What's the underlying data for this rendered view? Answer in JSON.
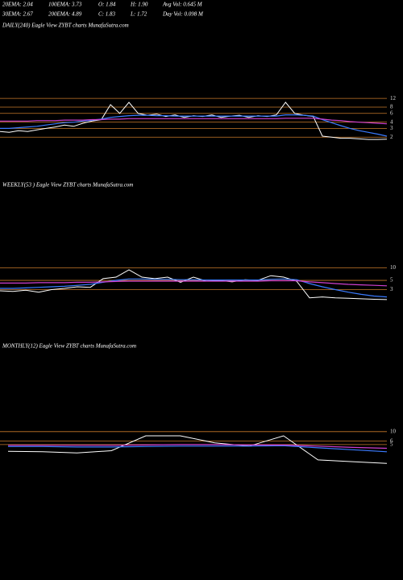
{
  "header": [
    [
      "20EMA: 2.04",
      "100EMA: 3.73",
      "O: 1.84",
      "H: 1.90",
      "Avg Vol: 0.645 M"
    ],
    [
      "30EMA: 2.67",
      "200EMA: 4.89",
      "C: 1.83",
      "L: 1.72",
      "Day Vol: 0.098 M"
    ]
  ],
  "chart_data": [
    {
      "type": "line",
      "title": "DAILY(240) Eagle  View  ZYBT charts MunafaSutra.com",
      "log_scale": true,
      "ylim": [
        1.5,
        14
      ],
      "yticks": [
        12,
        8,
        6,
        4,
        3,
        2
      ],
      "grid": true,
      "grid_color": "#c87a2a",
      "series": [
        {
          "color": "#ffffff",
          "values": [
            2.6,
            2.5,
            2.7,
            2.6,
            2.8,
            3.0,
            3.2,
            3.5,
            3.3,
            3.8,
            4.2,
            4.5,
            9,
            6,
            10,
            6,
            5.5,
            5.8,
            5.2,
            5.6,
            5.0,
            5.4,
            5.2,
            5.6,
            5.0,
            5.3,
            5.5,
            5.0,
            5.4,
            5.2,
            5.6,
            10,
            6,
            5.5,
            5.2,
            2.1,
            2.0,
            1.9,
            1.9,
            1.85,
            1.8,
            1.8,
            1.83
          ]
        },
        {
          "color": "#3a7bff",
          "values": [
            3,
            3,
            3.1,
            3.2,
            3.3,
            3.5,
            3.7,
            3.9,
            4,
            4.2,
            4.4,
            4.6,
            5,
            5.2,
            5.4,
            5.5,
            5.5,
            5.4,
            5.4,
            5.3,
            5.3,
            5.3,
            5.3,
            5.3,
            5.3,
            5.3,
            5.3,
            5.3,
            5.3,
            5.3,
            5.3,
            5.6,
            5.6,
            5.5,
            5.3,
            4.5,
            3.9,
            3.4,
            3.0,
            2.7,
            2.5,
            2.3,
            2.1
          ]
        },
        {
          "color": "#d040d0",
          "values": [
            4.2,
            4.2,
            4.2,
            4.2,
            4.3,
            4.3,
            4.3,
            4.4,
            4.4,
            4.4,
            4.5,
            4.5,
            4.6,
            4.6,
            4.7,
            4.7,
            4.7,
            4.7,
            4.7,
            4.7,
            4.7,
            4.7,
            4.7,
            4.7,
            4.7,
            4.7,
            4.7,
            4.7,
            4.7,
            4.7,
            4.7,
            4.8,
            4.8,
            4.8,
            4.8,
            4.6,
            4.4,
            4.3,
            4.1,
            4.0,
            3.9,
            3.8,
            3.7
          ]
        }
      ]
    },
    {
      "type": "line",
      "title": "WEEKLY(53                  ) Eagle  View  ZYBT charts MunafaSutra.com",
      "log_scale": true,
      "ylim": [
        1.5,
        14
      ],
      "yticks": [
        10,
        5,
        3
      ],
      "grid": true,
      "grid_color": "#c87a2a",
      "series": [
        {
          "color": "#ffffff",
          "values": [
            2.8,
            2.7,
            2.9,
            2.6,
            3.0,
            3.2,
            3.5,
            3.4,
            5.5,
            6,
            9,
            6,
            5.5,
            6,
            4.5,
            6,
            4.8,
            5,
            4.6,
            5.2,
            5,
            6.5,
            6,
            4.8,
            1.9,
            2.0,
            1.9,
            1.85,
            1.8,
            1.75,
            1.72
          ]
        },
        {
          "color": "#3a7bff",
          "values": [
            3.2,
            3.2,
            3.3,
            3.4,
            3.5,
            3.6,
            3.8,
            4.0,
            4.5,
            5.0,
            5.4,
            5.4,
            5.3,
            5.3,
            5.2,
            5.2,
            5.1,
            5.1,
            5.1,
            5.1,
            5.1,
            5.3,
            5.4,
            5.2,
            4.2,
            3.5,
            3.0,
            2.6,
            2.3,
            2.1,
            2.0
          ]
        },
        {
          "color": "#d040d0",
          "values": [
            4.3,
            4.3,
            4.3,
            4.4,
            4.4,
            4.4,
            4.5,
            4.5,
            4.6,
            4.7,
            4.8,
            4.8,
            4.8,
            4.8,
            4.8,
            4.8,
            4.8,
            4.8,
            4.8,
            4.8,
            4.8,
            4.9,
            4.9,
            4.9,
            4.6,
            4.4,
            4.2,
            4.0,
            3.9,
            3.8,
            3.7
          ]
        }
      ]
    },
    {
      "type": "line",
      "title": "MONTHLY(12) Eagle  View  ZYBT charts MunafaSutra.com",
      "log_scale": true,
      "ylim": [
        1.2,
        14
      ],
      "yticks": [
        10,
        6,
        5
      ],
      "grid": true,
      "grid_color": "#c87a2a",
      "series": [
        {
          "color": "#ffffff",
          "values": [
            3.5,
            3.4,
            3.2,
            3.6,
            8,
            8,
            5.5,
            4.6,
            8,
            2.2,
            2.0,
            1.83
          ]
        },
        {
          "color": "#3a7bff",
          "values": [
            4.5,
            4.5,
            4.4,
            4.4,
            4.5,
            4.6,
            4.6,
            4.6,
            4.7,
            4.2,
            3.8,
            3.4
          ]
        },
        {
          "color": "#d040d0",
          "values": [
            4.8,
            4.8,
            4.8,
            4.8,
            4.9,
            5.0,
            5.0,
            4.9,
            4.9,
            4.6,
            4.3,
            4.1
          ]
        }
      ]
    }
  ]
}
